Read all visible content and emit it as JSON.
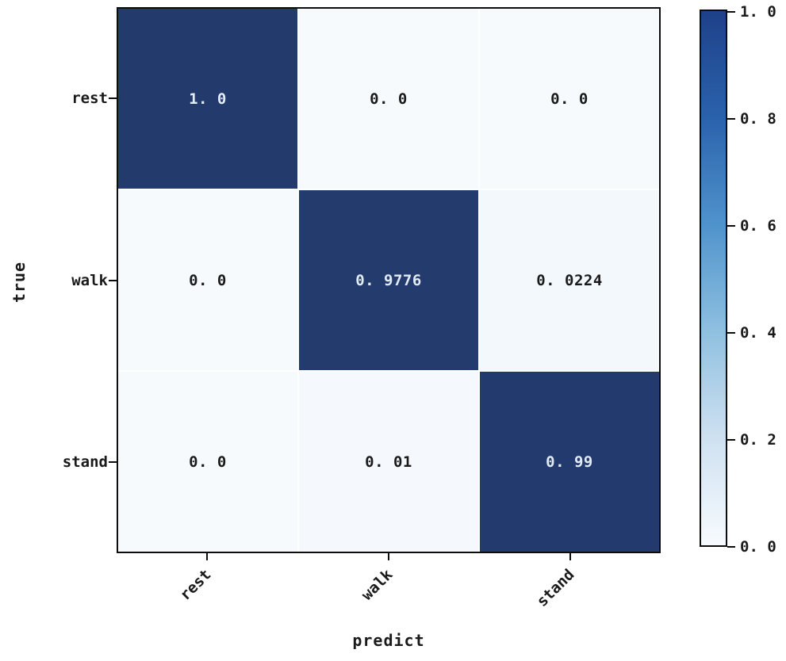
{
  "chart_data": {
    "type": "heatmap",
    "title": "",
    "xlabel": "predict",
    "ylabel": "true",
    "x_categories": [
      "rest",
      "walk",
      "stand"
    ],
    "y_categories": [
      "rest",
      "walk",
      "stand"
    ],
    "matrix": [
      [
        1.0,
        0.0,
        0.0
      ],
      [
        0.0,
        0.9776,
        0.0224
      ],
      [
        0.0,
        0.01,
        0.99
      ]
    ],
    "cell_labels": [
      [
        "1. 0",
        "0. 0",
        "0. 0"
      ],
      [
        "0. 0",
        "0. 9776",
        "0. 0224"
      ],
      [
        "0. 0",
        "0. 01",
        "0. 99"
      ]
    ],
    "colormap": "Blues",
    "value_range": [
      0.0,
      1.0
    ],
    "grid": false,
    "colorbar": {
      "position": "right",
      "ticks": [
        1.0,
        0.8,
        0.6,
        0.4,
        0.2,
        0.0
      ],
      "tick_labels": [
        "1. 0",
        "0. 8",
        "0. 6",
        "0. 4",
        "0. 2",
        "0. 0"
      ],
      "gradient_bottom_to_top": [
        "#f7fbfe",
        "#cfe1f1",
        "#8fc0e0",
        "#4f93cc",
        "#2b62ac",
        "#1e4189"
      ]
    },
    "colors": {
      "dark_cell": "#233a6d",
      "light_cell": "#f7fafd",
      "value_text_on_dark": "#e3ebf5",
      "value_text_on_light": "#1a1a1a",
      "axis_line": "#0d0d0d",
      "ramp_stops": [
        [
          0.0,
          "#f7fafd"
        ],
        [
          0.25,
          "#cfe1f1"
        ],
        [
          0.5,
          "#8fc0e0"
        ],
        [
          0.75,
          "#3a6fb0"
        ],
        [
          0.95,
          "#253c70"
        ],
        [
          1.0,
          "#233a6d"
        ]
      ]
    }
  }
}
